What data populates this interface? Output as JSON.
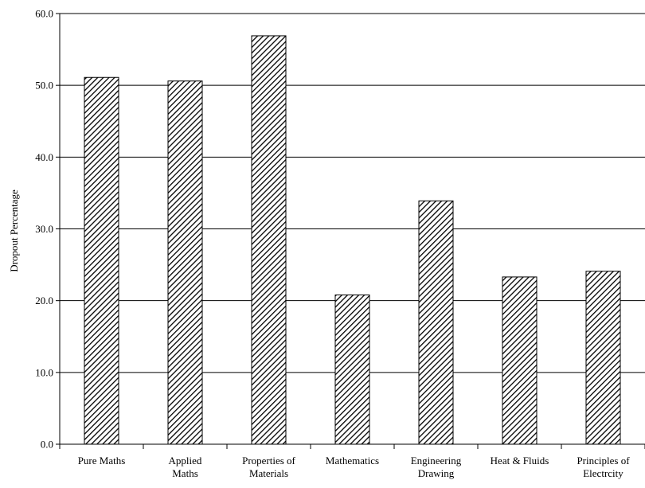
{
  "chart_data": {
    "type": "bar",
    "title": "",
    "xlabel": "",
    "ylabel": "Dropout Percentage",
    "ylim": [
      0,
      60
    ],
    "y_ticks": [
      0,
      10,
      20,
      30,
      40,
      50,
      60
    ],
    "y_tick_labels": [
      "0.0",
      "10.0",
      "20.0",
      "30.0",
      "40.0",
      "50.0",
      "60.0"
    ],
    "grid": true,
    "legend": "none",
    "bar_fill": "diagonal hatch",
    "colors": {
      "bar_stroke": "#000000",
      "hatch": "#000000",
      "background": "#ffffff",
      "grid": "#000000"
    },
    "categories": [
      [
        "Pure Maths"
      ],
      [
        "Applied",
        "Maths"
      ],
      [
        "Properties of",
        "Materials"
      ],
      [
        "Mathematics"
      ],
      [
        "Engineering",
        "Drawing"
      ],
      [
        "Heat & Fluids"
      ],
      [
        "Principles of",
        "Electrcity"
      ]
    ],
    "series": [
      {
        "values": [
          51.1,
          50.6,
          56.9,
          20.8,
          33.9,
          23.3,
          24.1
        ]
      }
    ]
  }
}
